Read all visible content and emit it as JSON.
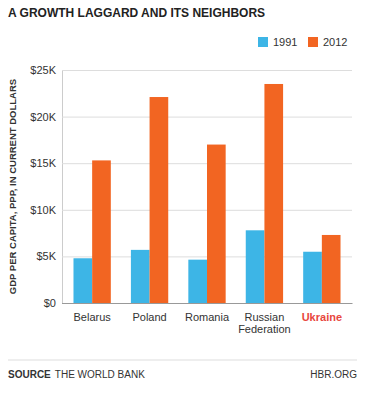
{
  "chart_data": {
    "type": "bar",
    "title": "A GROWTH LAGGARD AND ITS NEIGHBORS",
    "y_label": "GDP PER CAPITA, PPP, IN CURRENT DOLLARS",
    "categories": [
      "Belarus",
      "Poland",
      "Romania",
      "Russian Federation",
      "Ukraine"
    ],
    "series": [
      {
        "name": "1991",
        "color": "#3db5e6",
        "values": [
          4800,
          5700,
          4650,
          7800,
          5500
        ]
      },
      {
        "name": "2012",
        "color": "#f26522",
        "values": [
          15300,
          22100,
          17000,
          23500,
          7300
        ]
      }
    ],
    "ylim": [
      0,
      25000
    ],
    "yticks": [
      {
        "value": 0,
        "label": "$0"
      },
      {
        "value": 5000,
        "label": "$5K"
      },
      {
        "value": 10000,
        "label": "$10K"
      },
      {
        "value": 15000,
        "label": "$15K"
      },
      {
        "value": 20000,
        "label": "$20K"
      },
      {
        "value": 25000,
        "label": "$25K"
      }
    ],
    "grid": true,
    "legend": "top-right",
    "source_label": "SOURCE",
    "source": "THE WORLD BANK",
    "credit": "HBR.ORG"
  }
}
